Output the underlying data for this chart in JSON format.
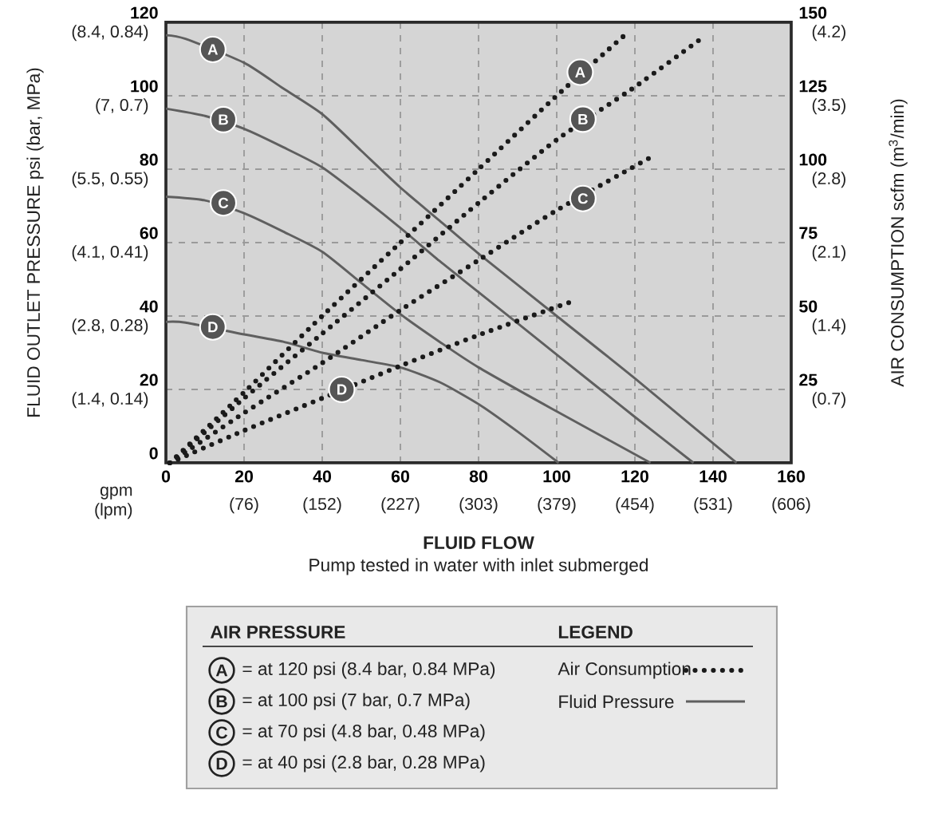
{
  "chart_data": {
    "type": "line",
    "xlabel": "FLUID FLOW",
    "ylabel": "FLUID OUTLET PRESSURE psi (bar, MPa)",
    "y2label": "AIR CONSUMPTION scfm (m$^{3}$/min)",
    "legend_title": "LEGEND",
    "legend": "bottom",
    "grid": true,
    "xlim": [
      0,
      160
    ],
    "ylim": [
      0,
      120
    ],
    "y2lim": [
      0,
      150
    ],
    "xticks": [
      0,
      20,
      40,
      60,
      80,
      100,
      120,
      140,
      160
    ],
    "yticks": [
      0,
      20,
      40,
      60,
      80,
      100,
      120
    ],
    "y2ticks": [
      25,
      50,
      75,
      100,
      125,
      150
    ],
    "series": [
      {
        "name": "Air Consumption",
        "color": "#1a1a1a",
        "axis": "y2",
        "line_style": "dotted",
        "x": [
          1,
          20,
          40,
          60,
          80,
          100,
          117.7
        ],
        "values": [
          0,
          24,
          50,
          75,
          100,
          125,
          146
        ]
      },
      {
        "color": "#1a1a1a",
        "axis": "y2",
        "line_style": "dotted",
        "x": [
          1,
          20,
          40,
          60,
          80,
          100,
          120,
          136.5
        ],
        "values": [
          0,
          22,
          44,
          66,
          88.5,
          110,
          128,
          144
        ]
      },
      {
        "color": "#1a1a1a",
        "axis": "y2",
        "line_style": "dotted",
        "x": [
          1,
          20,
          40,
          60,
          80,
          100,
          124
        ],
        "values": [
          0,
          17,
          34,
          52,
          69,
          86,
          104
        ]
      },
      {
        "color": "#1a1a1a",
        "axis": "y2",
        "line_style": "dotted",
        "x": [
          1,
          20,
          40,
          60,
          80,
          104
        ],
        "values": [
          0,
          11,
          22,
          33,
          43.5,
          55
        ]
      },
      {
        "name": "Fluid Pressure",
        "color": "#5f5f5f",
        "line_style": "solid",
        "x": [
          0,
          5,
          20,
          30,
          40,
          50,
          60,
          70,
          80,
          100,
          120,
          146
        ],
        "values": [
          116.5,
          115.5,
          109,
          102,
          95,
          85,
          75,
          66,
          57,
          40,
          23,
          0
        ]
      },
      {
        "color": "#5f5f5f",
        "line_style": "solid",
        "x": [
          0,
          10,
          20,
          30,
          40,
          50,
          60,
          70,
          80,
          100,
          120,
          135
        ],
        "values": [
          96.5,
          94.5,
          91,
          86,
          80.5,
          72.5,
          64,
          55,
          46.5,
          29.5,
          12.5,
          0
        ]
      },
      {
        "color": "#5f5f5f",
        "line_style": "solid",
        "x": [
          0,
          10,
          20,
          30,
          40,
          50,
          60,
          70,
          80,
          100,
          124
        ],
        "values": [
          72.5,
          71.5,
          68,
          63,
          57.5,
          49,
          40.5,
          33,
          26,
          14,
          0
        ]
      },
      {
        "color": "#5f5f5f",
        "line_style": "solid",
        "x": [
          0,
          5,
          20,
          30,
          40,
          50,
          60,
          70,
          80,
          90,
          100.5
        ],
        "values": [
          38.4,
          38.2,
          35,
          33,
          30,
          28,
          26,
          22,
          16,
          8.5,
          0
        ]
      }
    ],
    "annotations": [
      {
        "text": "A",
        "x": 12,
        "y": 112.6
      },
      {
        "text": "B",
        "x": 14.7,
        "y": 93.5
      },
      {
        "text": "C",
        "x": 14.7,
        "y": 70.8
      },
      {
        "text": "D",
        "x": 12,
        "y": 37
      },
      {
        "text": "A",
        "x": 106,
        "y": 106.4
      },
      {
        "text": "B",
        "x": 106.7,
        "y": 93.6
      },
      {
        "text": "C",
        "x": 106.7,
        "y": 72
      },
      {
        "text": "D",
        "x": 45,
        "y": 20
      },
      "gpm\n(lpm)",
      "Pump tested in water with inlet submerged",
      "AIR PRESSURE",
      "A",
      "B",
      "C",
      "D",
      "= at 120 psi (8.4 bar, 0.84 MPa)",
      "= at 100 psi (7 bar, 0.7 MPa)",
      "= at 70 psi (4.8 bar, 0.48 MPa)",
      "= at 40 psi (2.8 bar, 0.28 MPa)",
      "(1.4, 0.14)",
      "(2.8, 0.28)",
      "(4.1, 0.41)",
      "(5.5, 0.55)",
      "(7, 0.7)",
      "(8.4, 0.84)",
      "(76)",
      "(152)",
      "(227)",
      "(303)",
      "(379)",
      "(454)",
      "(531)",
      "(606)",
      "(0.7)",
      "(1.4)",
      "(2.1)",
      "(2.8)",
      "(3.5)",
      "(4.2)"
    ]
  }
}
